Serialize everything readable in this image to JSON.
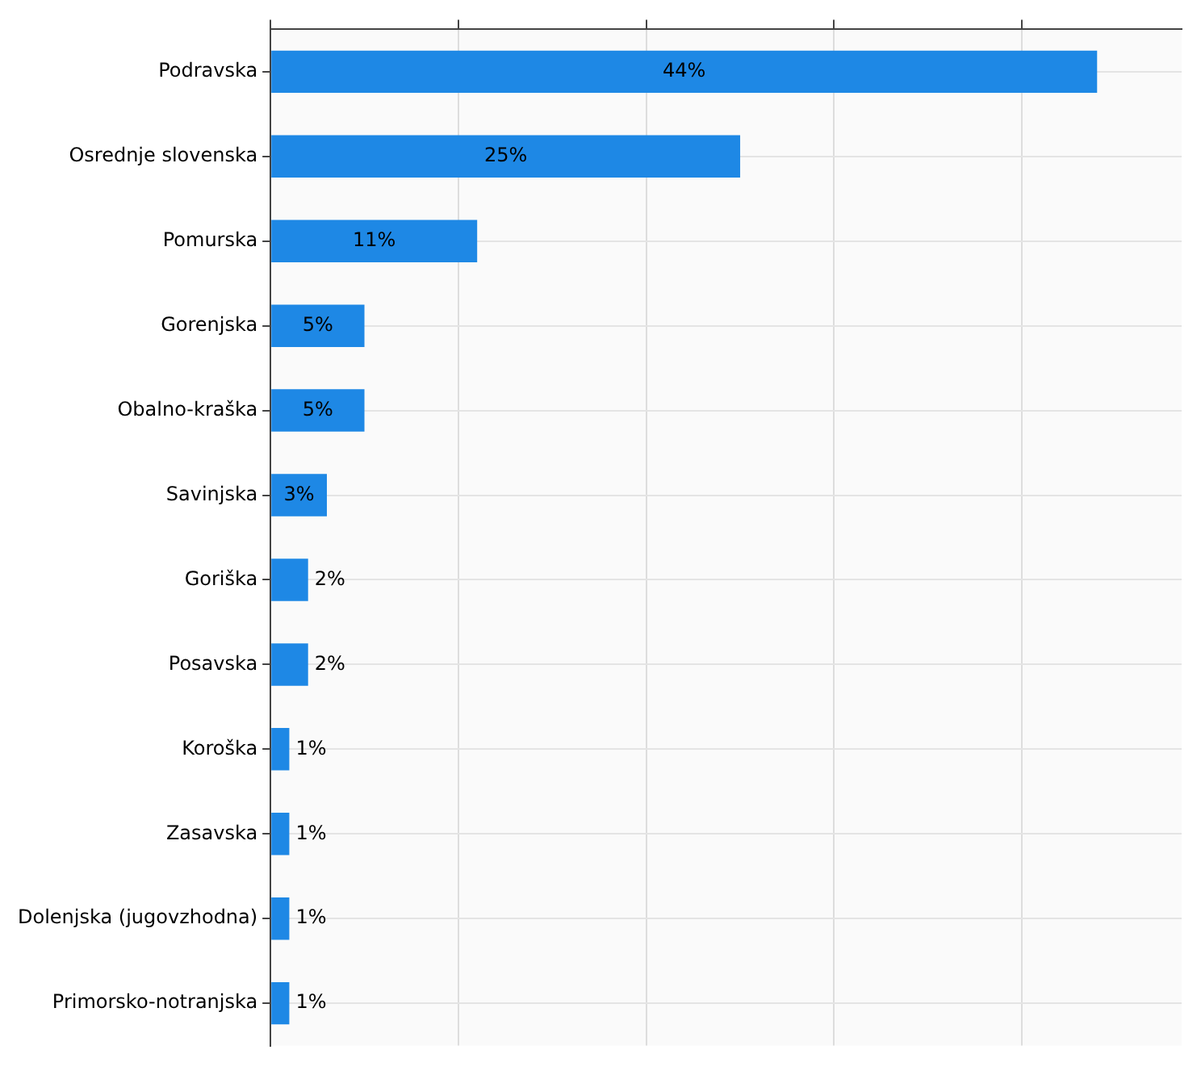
{
  "chart_data": {
    "type": "bar",
    "orientation": "horizontal",
    "categories": [
      "Podravska",
      "Osrednje slovenska",
      "Pomurska",
      "Gorenjska",
      "Obalno-kraška",
      "Savinjska",
      "Goriška",
      "Posavska",
      "Koroška",
      "Zasavska",
      "Dolenjska (jugovzhodna)",
      "Primorsko-notranjska"
    ],
    "values": [
      44,
      25,
      11,
      5,
      5,
      3,
      2,
      2,
      1,
      1,
      1,
      1
    ],
    "value_labels": [
      "44%",
      "25%",
      "11%",
      "5%",
      "5%",
      "3%",
      "2%",
      "2%",
      "1%",
      "1%",
      "1%",
      "1%"
    ],
    "color": "#1e88e5",
    "xlim": [
      0,
      48.5
    ],
    "xticks": [
      {
        "value": 0,
        "label": null
      },
      {
        "value": 10,
        "label": null
      },
      {
        "value": 20,
        "label": null
      },
      {
        "value": 30,
        "label": null
      },
      {
        "value": 40,
        "label": null
      }
    ],
    "tick_labels": "y",
    "grid": true,
    "legend": false
  }
}
